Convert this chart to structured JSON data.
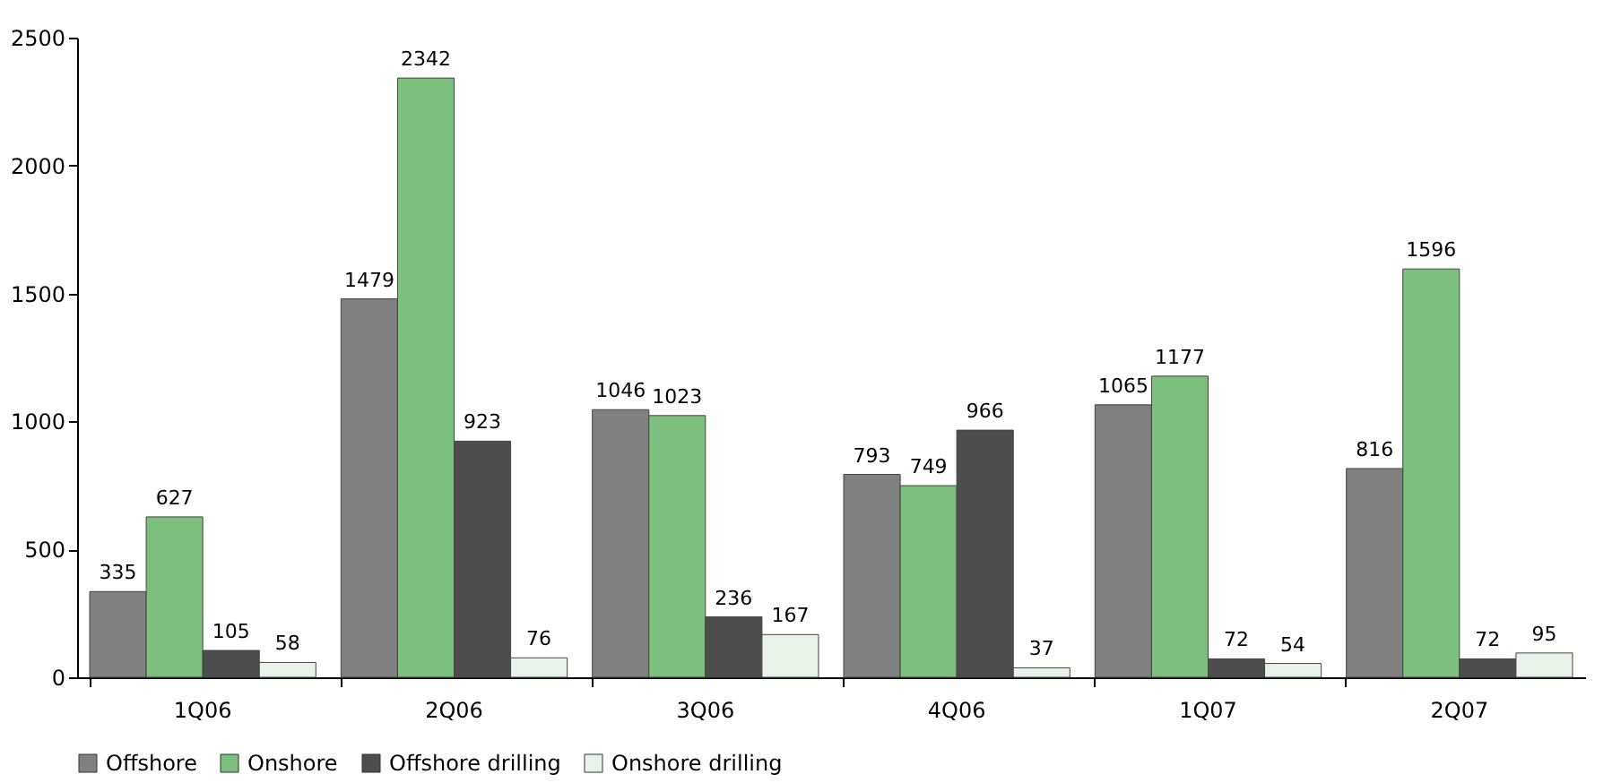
{
  "chart_data": {
    "type": "bar",
    "categories": [
      "1Q06",
      "2Q06",
      "3Q06",
      "4Q06",
      "1Q07",
      "2Q07"
    ],
    "series": [
      {
        "name": "Offshore",
        "color": "#808080",
        "values": [
          335,
          1479,
          1046,
          793,
          1065,
          816
        ]
      },
      {
        "name": "Onshore",
        "color": "#7dbf7d",
        "values": [
          627,
          2342,
          1023,
          749,
          1177,
          1596
        ]
      },
      {
        "name": "Offshore drilling",
        "color": "#4d4d4d",
        "values": [
          105,
          923,
          236,
          966,
          72,
          72
        ]
      },
      {
        "name": "Onshore drilling",
        "color": "#e8f2e8",
        "values": [
          58,
          76,
          167,
          37,
          54,
          95
        ]
      }
    ],
    "ylim": [
      0,
      2500
    ],
    "yticks": [
      0,
      500,
      1000,
      1500,
      2000,
      2500
    ],
    "grid": false,
    "legend": "bottom",
    "data_labels": true
  }
}
